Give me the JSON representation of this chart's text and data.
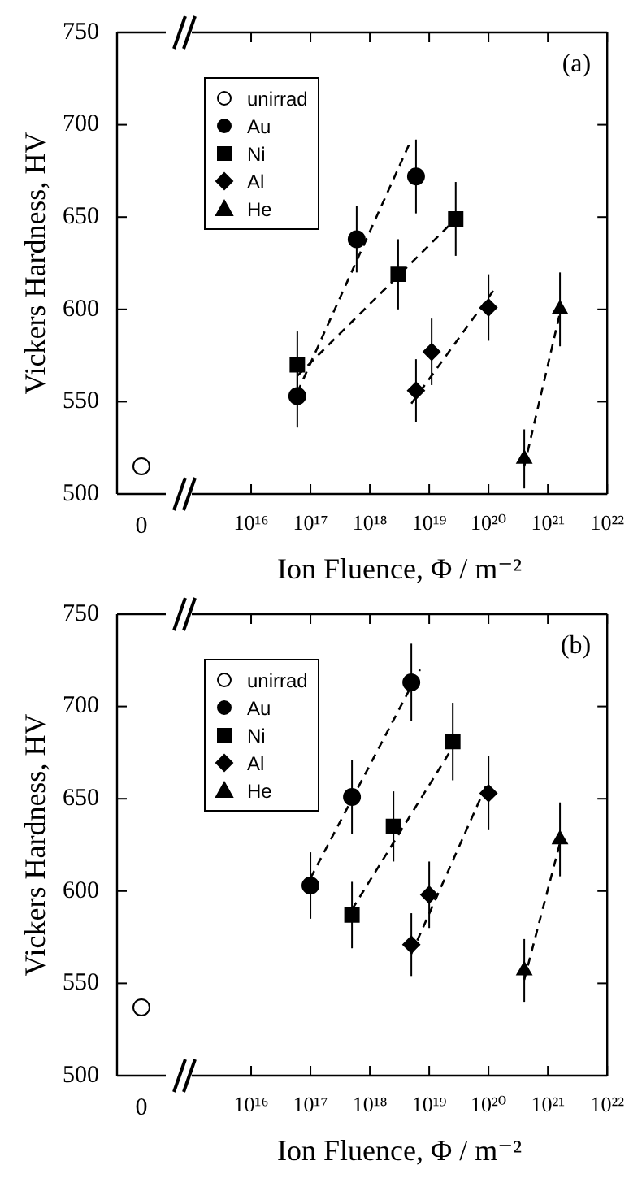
{
  "chart_data": [
    {
      "type": "scatter",
      "ylabel": "Vickers Hardness, HV",
      "categories": [
        "0"
      ],
      "ylim": [
        500,
        750
      ],
      "yticks": [
        500,
        550,
        600,
        650,
        700,
        750
      ],
      "series": [
        {
          "name": "unirrad",
          "color": "#ffffff",
          "marker": "circle",
          "values": [
            515
          ]
        }
      ]
    },
    {
      "type": "scatter",
      "xlabel": "Ion Fluence, Φ / m⁻²",
      "annotations": [
        "(a)"
      ],
      "log": "x",
      "xlim": [
        1000000000000000.0,
        1e+22
      ],
      "xticks": [
        {
          "value": 1e+16,
          "label": "10¹⁶"
        },
        {
          "value": 1e+17,
          "label": "10¹⁷"
        },
        {
          "value": 1e+18,
          "label": "10¹⁸"
        },
        {
          "value": 1e+19,
          "label": "10¹⁹"
        },
        {
          "value": 1e+20,
          "label": "10²⁰"
        },
        {
          "value": 1e+21,
          "label": "10²¹"
        },
        {
          "value": 1e+22,
          "label": "10²²"
        }
      ],
      "ylim": [
        500,
        750
      ],
      "yticks": [
        500,
        550,
        600,
        650,
        700,
        750
      ],
      "tick_labels": "x",
      "legend": "top left",
      "series": [
        {
          "name": "Au",
          "color": "#000000",
          "marker": "circle",
          "x": [
            6e+16,
            6e+17,
            6e+18
          ],
          "values": [
            553,
            638,
            672
          ],
          "errors": [
            17,
            18,
            20
          ]
        },
        {
          "name": "Ni",
          "color": "#000000",
          "marker": "square",
          "x": [
            6e+16,
            3e+18,
            2.8e+19
          ],
          "values": [
            570,
            619,
            649
          ],
          "errors": [
            18,
            19,
            20
          ]
        },
        {
          "name": "Al",
          "color": "#000000",
          "marker": "diamond",
          "x": [
            6e+18,
            1.1e+19,
            1e+20
          ],
          "values": [
            556,
            577,
            601
          ],
          "errors": [
            17,
            18,
            18
          ]
        },
        {
          "name": "He",
          "color": "#000000",
          "marker": "triangle",
          "x": [
            4e+20,
            1.6e+21
          ],
          "values": [
            519,
            600
          ],
          "errors": [
            16,
            20
          ]
        },
        {
          "type": "line",
          "color": "#000000",
          "marker": "none",
          "line_style": "dashed",
          "x": [
            6e+16,
            5e+18
          ],
          "values": [
            555,
            692
          ]
        },
        {
          "type": "line",
          "color": "#000000",
          "marker": "none",
          "line_style": "dashed",
          "x": [
            6e+16,
            2.8e+19
          ],
          "values": [
            564,
            649
          ]
        },
        {
          "type": "line",
          "color": "#000000",
          "marker": "none",
          "line_style": "dashed",
          "x": [
            5e+18,
            1.2e+20
          ],
          "values": [
            549,
            610
          ]
        },
        {
          "type": "line",
          "color": "#000000",
          "marker": "none",
          "line_style": "dashed",
          "x": [
            4e+20,
            1.6e+21
          ],
          "values": [
            515,
            598
          ]
        }
      ]
    },
    {
      "type": "scatter",
      "ylabel": "Vickers Hardness, HV",
      "categories": [
        "0"
      ],
      "ylim": [
        500,
        750
      ],
      "yticks": [
        500,
        550,
        600,
        650,
        700,
        750
      ],
      "series": [
        {
          "name": "unirrad",
          "color": "#ffffff",
          "marker": "circle",
          "values": [
            537
          ]
        }
      ]
    },
    {
      "type": "scatter",
      "xlabel": "Ion Fluence, Φ / m⁻²",
      "annotations": [
        "(b)"
      ],
      "log": "x",
      "xlim": [
        1000000000000000.0,
        1e+22
      ],
      "xticks": [
        {
          "value": 1e+16,
          "label": "10¹⁶"
        },
        {
          "value": 1e+17,
          "label": "10¹⁷"
        },
        {
          "value": 1e+18,
          "label": "10¹⁸"
        },
        {
          "value": 1e+19,
          "label": "10¹⁹"
        },
        {
          "value": 1e+20,
          "label": "10²⁰"
        },
        {
          "value": 1e+21,
          "label": "10²¹"
        },
        {
          "value": 1e+22,
          "label": "10²²"
        }
      ],
      "ylim": [
        500,
        750
      ],
      "yticks": [
        500,
        550,
        600,
        650,
        700,
        750
      ],
      "tick_labels": "x",
      "legend": "top left",
      "series": [
        {
          "name": "Au",
          "color": "#000000",
          "marker": "circle",
          "x": [
            1e+17,
            5e+17,
            5e+18
          ],
          "values": [
            603,
            651,
            713
          ],
          "errors": [
            18,
            20,
            21
          ]
        },
        {
          "name": "Ni",
          "color": "#000000",
          "marker": "square",
          "x": [
            5e+17,
            2.5e+18,
            2.5e+19
          ],
          "values": [
            587,
            635,
            681
          ],
          "errors": [
            18,
            19,
            21
          ]
        },
        {
          "name": "Al",
          "color": "#000000",
          "marker": "diamond",
          "x": [
            5e+18,
            1e+19,
            1e+20
          ],
          "values": [
            571,
            598,
            653
          ],
          "errors": [
            17,
            18,
            20
          ]
        },
        {
          "name": "He",
          "color": "#000000",
          "marker": "triangle",
          "x": [
            4e+20,
            1.6e+21
          ],
          "values": [
            557,
            628
          ],
          "errors": [
            17,
            20
          ]
        },
        {
          "type": "line",
          "color": "#000000",
          "marker": "none",
          "line_style": "dashed",
          "x": [
            1e+17,
            7e+18
          ],
          "values": [
            607,
            720
          ]
        },
        {
          "type": "line",
          "color": "#000000",
          "marker": "none",
          "line_style": "dashed",
          "x": [
            5e+17,
            2.5e+19
          ],
          "values": [
            590,
            678
          ]
        },
        {
          "type": "line",
          "color": "#000000",
          "marker": "none",
          "line_style": "dashed",
          "x": [
            5e+18,
            1e+20
          ],
          "values": [
            566,
            660
          ]
        },
        {
          "type": "line",
          "color": "#000000",
          "marker": "none",
          "line_style": "dashed",
          "x": [
            4e+20,
            1.6e+21
          ],
          "values": [
            552,
            626
          ]
        }
      ]
    }
  ]
}
